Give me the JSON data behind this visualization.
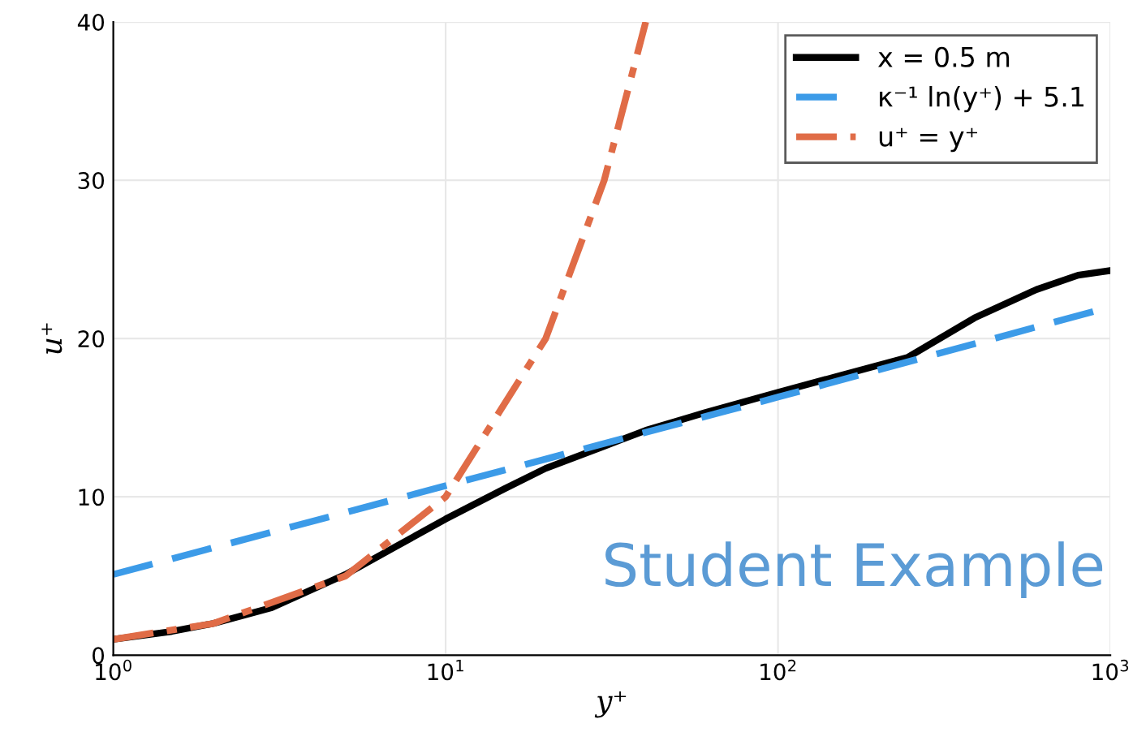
{
  "chart_data": {
    "type": "line",
    "xlabel": "y⁺",
    "ylabel": "u⁺",
    "log": "x",
    "xlim": [
      1,
      1000
    ],
    "ylim": [
      0,
      40
    ],
    "xticks": [
      {
        "value": 1,
        "label": "10$^{0}$"
      },
      {
        "value": 10,
        "label": "10$^{1}$"
      },
      {
        "value": 100,
        "label": "10$^{2}$"
      },
      {
        "value": 1000,
        "label": "10$^{3}$"
      }
    ],
    "yticks": [
      0,
      10,
      20,
      30,
      40
    ],
    "grid": true,
    "legend": "top right",
    "series": [
      {
        "name": "x = 0.5 m",
        "color": "#000000",
        "line_style": "solid",
        "x": [
          1,
          1.5,
          2,
          3,
          5,
          7,
          10,
          15,
          20,
          30,
          40,
          60,
          100,
          150,
          245,
          390,
          600,
          800,
          1000
        ],
        "values": [
          1,
          1.5,
          2,
          3,
          5.1,
          6.8,
          8.6,
          10.5,
          11.8,
          13.2,
          14.2,
          15.3,
          16.6,
          17.6,
          18.8,
          21.3,
          23.1,
          24,
          24.3
        ]
      },
      {
        "name": "κ⁻¹ ln(y⁺) + 5.1",
        "color": "#3c9be8",
        "line_style": "dashed",
        "x": [
          1,
          10,
          100,
          1000
        ],
        "values": [
          5.1,
          10.7,
          16.3,
          22.0
        ]
      },
      {
        "name": "u⁺ = y⁺",
        "color": "#e06c47",
        "line_style": "dashdot",
        "x": [
          1,
          2,
          5,
          10,
          20,
          30,
          40
        ],
        "values": [
          1,
          2,
          5,
          10,
          20,
          30,
          40
        ]
      }
    ],
    "annotations": [
      "Student Example"
    ]
  }
}
